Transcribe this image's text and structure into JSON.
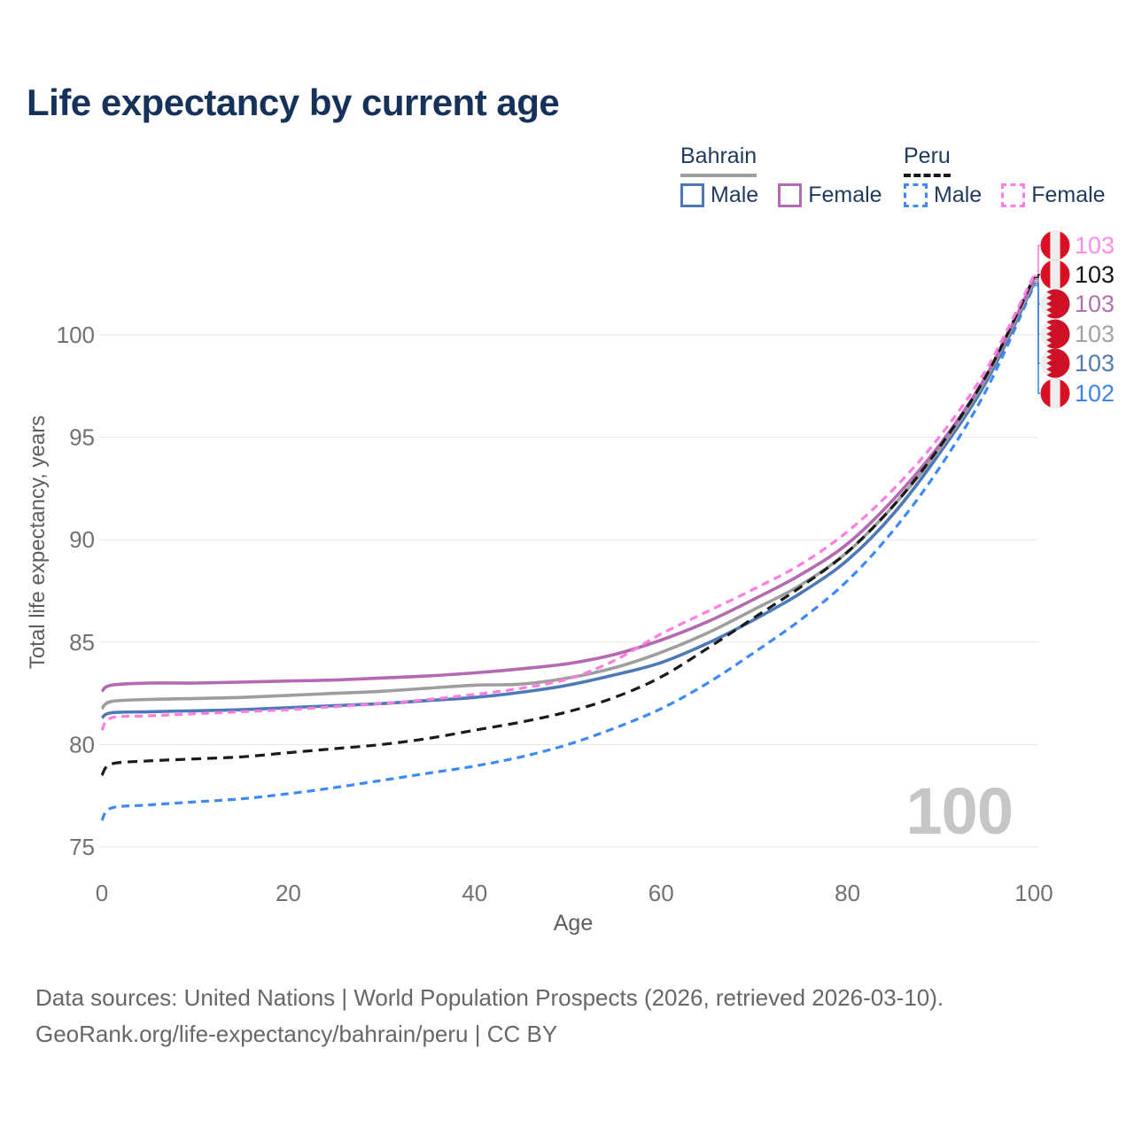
{
  "title": "Life expectancy by current age",
  "legend": {
    "groups": [
      {
        "label": "Bahrain",
        "underline": "solid",
        "underline_color": "#9e9e9e",
        "items": [
          {
            "label": "Male",
            "color": "#4d79b7",
            "dashed": false
          },
          {
            "label": "Female",
            "color": "#b46ab2",
            "dashed": false
          }
        ]
      },
      {
        "label": "Peru",
        "underline": "dashed",
        "underline_color": "#1a1a1a",
        "items": [
          {
            "label": "Male",
            "color": "#3d8af5",
            "dashed": true
          },
          {
            "label": "Female",
            "color": "#ff7ce0",
            "dashed": true
          }
        ]
      }
    ]
  },
  "chart_data": {
    "type": "line",
    "title": "Life expectancy by current age",
    "xlabel": "Age",
    "ylabel": "Total life expectancy, years",
    "x_ticks": [
      0,
      20,
      40,
      60,
      80,
      100
    ],
    "y_ticks": [
      75,
      80,
      85,
      90,
      95,
      100
    ],
    "xlim": [
      0,
      100
    ],
    "ylim": [
      75,
      103.5
    ],
    "grid": "horizontal",
    "watermark": "100",
    "x": [
      0,
      1,
      5,
      10,
      15,
      20,
      25,
      30,
      35,
      40,
      45,
      50,
      55,
      60,
      65,
      70,
      75,
      80,
      85,
      90,
      95,
      100
    ],
    "series": [
      {
        "id": "peru-female",
        "country": "Peru",
        "sex": "Female",
        "color": "#ff7ce0",
        "label_color": "#ff8ae8",
        "dashed": true,
        "flag": "peru",
        "end_label": "103",
        "values": [
          80.7,
          81.3,
          81.4,
          81.5,
          81.6,
          81.7,
          81.85,
          82.0,
          82.2,
          82.45,
          82.75,
          83.2,
          84.1,
          85.4,
          86.5,
          87.6,
          88.8,
          90.4,
          92.5,
          95.1,
          98.4,
          102.9
        ]
      },
      {
        "id": "peru-total",
        "country": "Peru",
        "sex": "Both",
        "color": "#1a1a1a",
        "label_color": "#141414",
        "dashed": true,
        "flag": "peru",
        "end_label": "103",
        "values": [
          78.5,
          79.05,
          79.2,
          79.3,
          79.4,
          79.6,
          79.8,
          80.0,
          80.3,
          80.7,
          81.1,
          81.6,
          82.3,
          83.3,
          84.7,
          86.2,
          87.7,
          89.4,
          91.7,
          94.6,
          98.1,
          102.8
        ]
      },
      {
        "id": "bahrain-female",
        "country": "Bahrain",
        "sex": "Female",
        "color": "#b46ab2",
        "label_color": "#af72ad",
        "dashed": false,
        "flag": "bahrain",
        "end_label": "103",
        "values": [
          82.6,
          82.9,
          83.0,
          83.0,
          83.05,
          83.1,
          83.15,
          83.25,
          83.35,
          83.5,
          83.7,
          83.95,
          84.4,
          85.1,
          86.0,
          87.1,
          88.3,
          89.8,
          92.0,
          94.7,
          98.1,
          102.7
        ]
      },
      {
        "id": "bahrain-total",
        "country": "Bahrain",
        "sex": "Both",
        "color": "#9e9e9e",
        "label_color": "#a2a2a2",
        "dashed": false,
        "flag": "bahrain",
        "end_label": "103",
        "values": [
          81.75,
          82.1,
          82.2,
          82.25,
          82.3,
          82.4,
          82.5,
          82.6,
          82.75,
          82.9,
          82.95,
          83.25,
          83.75,
          84.5,
          85.45,
          86.6,
          87.8,
          89.4,
          91.7,
          94.5,
          98.0,
          102.6
        ]
      },
      {
        "id": "bahrain-male",
        "country": "Bahrain",
        "sex": "Male",
        "color": "#4d79b7",
        "label_color": "#517bb0",
        "dashed": false,
        "flag": "bahrain",
        "end_label": "103",
        "values": [
          81.3,
          81.55,
          81.6,
          81.65,
          81.7,
          81.8,
          81.9,
          82.0,
          82.15,
          82.3,
          82.55,
          82.9,
          83.4,
          84.0,
          84.95,
          86.1,
          87.4,
          89.0,
          91.3,
          94.3,
          97.8,
          102.5
        ]
      },
      {
        "id": "peru-male",
        "country": "Peru",
        "sex": "Male",
        "color": "#3d8af5",
        "label_color": "#3e83e8",
        "dashed": true,
        "flag": "peru",
        "end_label": "102",
        "values": [
          76.3,
          76.9,
          77.05,
          77.2,
          77.35,
          77.6,
          77.9,
          78.25,
          78.6,
          78.95,
          79.4,
          80.0,
          80.8,
          81.75,
          83.0,
          84.5,
          86.1,
          88.0,
          90.5,
          93.6,
          97.4,
          102.4
        ]
      }
    ],
    "flag_colors": {
      "peru_red": "#d91023",
      "bahrain_red": "#ce1126",
      "flag_white": "#ededed"
    }
  },
  "footer": {
    "line1": "Data sources: United Nations | World Population Prospects (2026, retrieved 2026-03-10).",
    "line2": "GeoRank.org/life-expectancy/bahrain/peru | CC BY"
  }
}
